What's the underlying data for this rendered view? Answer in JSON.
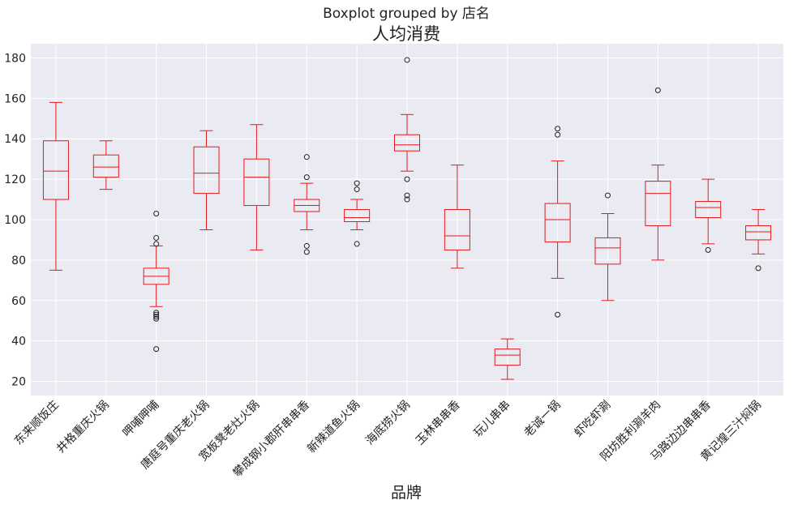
{
  "chart_data": {
    "type": "boxplot",
    "suptitle": "Boxplot grouped by 店名",
    "title": "人均消费",
    "xlabel": "品牌",
    "ylabel": "",
    "ylim": [
      13,
      187
    ],
    "yticks": [
      20,
      40,
      60,
      80,
      100,
      120,
      140,
      160,
      180
    ],
    "grid": true,
    "box_color": "#e41a1c",
    "background_color": "#eaeaf2",
    "categories": [
      "东来顺饭庄",
      "井格重庆火锅",
      "呷哺呷哺",
      "唐庭号重庆老火锅",
      "宽板凳老灶火锅",
      "攀成钢小郡肝串串香",
      "新辣道鱼火锅",
      "海底捞火锅",
      "玉林串串香",
      "玩儿串串",
      "老诚一锅",
      "虾吃虾涮",
      "阳坊胜利涮羊肉",
      "马路边边串串香",
      "黄记煌三汁焖锅"
    ],
    "boxes": [
      {
        "name": "东来顺饭庄",
        "whislo": 75,
        "q1": 110,
        "med": 124,
        "q3": 139,
        "whishi": 158,
        "fliers": []
      },
      {
        "name": "井格重庆火锅",
        "whislo": 115,
        "q1": 121,
        "med": 126,
        "q3": 132,
        "whishi": 139,
        "fliers": []
      },
      {
        "name": "呷哺呷哺",
        "whislo": 57,
        "q1": 68,
        "med": 72,
        "q3": 76,
        "whishi": 87,
        "fliers": [
          103,
          91,
          88,
          54,
          53,
          52,
          51,
          36
        ]
      },
      {
        "name": "唐庭号重庆老火锅",
        "whislo": 95,
        "q1": 113,
        "med": 123,
        "q3": 136,
        "whishi": 144,
        "fliers": []
      },
      {
        "name": "宽板凳老灶火锅",
        "whislo": 85,
        "q1": 107,
        "med": 121,
        "q3": 130,
        "whishi": 147,
        "fliers": []
      },
      {
        "name": "攀成钢小郡肝串串香",
        "whislo": 95,
        "q1": 104,
        "med": 107,
        "q3": 110,
        "whishi": 118,
        "fliers": [
          131,
          121,
          87,
          84
        ]
      },
      {
        "name": "新辣道鱼火锅",
        "whislo": 95,
        "q1": 99,
        "med": 101,
        "q3": 105,
        "whishi": 110,
        "fliers": [
          118,
          115,
          88
        ]
      },
      {
        "name": "海底捞火锅",
        "whislo": 124,
        "q1": 134,
        "med": 137,
        "q3": 142,
        "whishi": 152,
        "fliers": [
          179,
          120,
          112,
          110
        ]
      },
      {
        "name": "玉林串串香",
        "whislo": 76,
        "q1": 85,
        "med": 92,
        "q3": 105,
        "whishi": 127,
        "fliers": []
      },
      {
        "name": "玩儿串串",
        "whislo": 21,
        "q1": 28,
        "med": 33,
        "q3": 36,
        "whishi": 41,
        "fliers": []
      },
      {
        "name": "老诚一锅",
        "whislo": 71,
        "q1": 89,
        "med": 100,
        "q3": 108,
        "whishi": 129,
        "fliers": [
          145,
          142,
          53
        ]
      },
      {
        "name": "虾吃虾涮",
        "whislo": 60,
        "q1": 78,
        "med": 86,
        "q3": 91,
        "whishi": 103,
        "fliers": [
          112
        ]
      },
      {
        "name": "阳坊胜利涮羊肉",
        "whislo": 80,
        "q1": 97,
        "med": 113,
        "q3": 119,
        "whishi": 127,
        "fliers": [
          164
        ]
      },
      {
        "name": "马路边边串串香",
        "whislo": 88,
        "q1": 101,
        "med": 106,
        "q3": 109,
        "whishi": 120,
        "fliers": [
          85
        ]
      },
      {
        "name": "黄记煌三汁焖锅",
        "whislo": 83,
        "q1": 90,
        "med": 94,
        "q3": 97,
        "whishi": 105,
        "fliers": [
          76
        ]
      }
    ]
  }
}
